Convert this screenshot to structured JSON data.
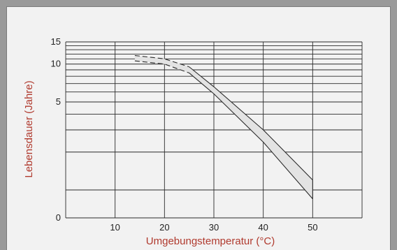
{
  "chart_data": {
    "type": "area",
    "title": "",
    "xlabel": "Umgebungstemperatur (°C)",
    "ylabel": "Lebensdauer (Jahre)",
    "xlim": [
      0,
      60
    ],
    "ylim": [
      0,
      15
    ],
    "x_ticks": [
      10,
      20,
      30,
      40,
      50
    ],
    "y_ticks": [
      0,
      5,
      10,
      15
    ],
    "y_scale": "logarithmic",
    "grid": true,
    "series": [
      {
        "role": "upper",
        "points": [
          [
            14,
            11.7
          ],
          [
            20,
            11.0
          ],
          [
            25,
            9.5
          ],
          [
            30,
            6.6
          ],
          [
            40,
            3.0
          ],
          [
            50,
            1.2
          ]
        ],
        "dashed_until": 25
      },
      {
        "role": "lower",
        "points": [
          [
            14,
            10.6
          ],
          [
            20,
            10.0
          ],
          [
            25,
            8.5
          ],
          [
            30,
            5.8
          ],
          [
            40,
            2.4
          ],
          [
            50,
            0.85
          ]
        ],
        "dashed_until": 25
      }
    ]
  },
  "colors": {
    "background": "#f2f2f2",
    "outer": "#9a9a9a",
    "grid": "#2b2b2b",
    "band_fill": "#e3e3e3",
    "axis_title": "#b03a2e",
    "tick_text": "#222222"
  }
}
